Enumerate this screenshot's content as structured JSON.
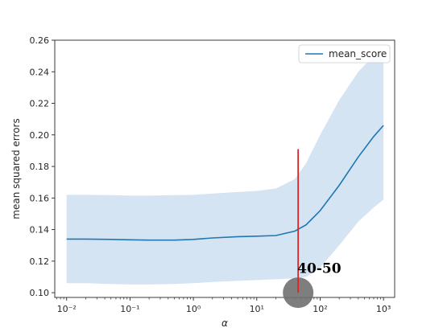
{
  "chart_data": {
    "type": "line",
    "title": "",
    "xlabel": "α",
    "ylabel": "mean squared errors",
    "xscale": "log",
    "xlim": [
      0.0065,
      1500
    ],
    "ylim": [
      0.097,
      0.26
    ],
    "xticks": [
      {
        "value": 0.01,
        "label": "10⁻²"
      },
      {
        "value": 0.1,
        "label": "10⁻¹"
      },
      {
        "value": 1,
        "label": "10⁰"
      },
      {
        "value": 10,
        "label": "10¹"
      },
      {
        "value": 100,
        "label": "10²"
      },
      {
        "value": 1000,
        "label": "10³"
      }
    ],
    "yticks": [
      0.1,
      0.12,
      0.14,
      0.16,
      0.18,
      0.2,
      0.22,
      0.24,
      0.26
    ],
    "ytick_labels": [
      "0.10",
      "0.12",
      "0.14",
      "0.16",
      "0.18",
      "0.20",
      "0.22",
      "0.24",
      "0.26"
    ],
    "legend": {
      "position": "top-right",
      "entries": [
        "mean_score"
      ]
    },
    "grid": false,
    "colors": {
      "line": "#1f77b4",
      "band": "#c6dbef",
      "vline": "#d62728",
      "marker": "#707070"
    },
    "series": [
      {
        "name": "mean_score",
        "x": [
          0.01,
          0.02,
          0.05,
          0.1,
          0.2,
          0.5,
          1,
          2,
          5,
          10,
          20,
          40,
          60,
          100,
          200,
          400,
          700,
          1000
        ],
        "y": [
          0.134,
          0.134,
          0.1338,
          0.1335,
          0.1333,
          0.1333,
          0.1338,
          0.1347,
          0.1355,
          0.1358,
          0.1362,
          0.139,
          0.143,
          0.152,
          0.168,
          0.186,
          0.199,
          0.206
        ]
      }
    ],
    "band": {
      "x": [
        0.01,
        0.02,
        0.05,
        0.1,
        0.2,
        0.5,
        1,
        2,
        5,
        10,
        20,
        40,
        60,
        100,
        200,
        400,
        700,
        1000
      ],
      "lower": [
        0.106,
        0.106,
        0.1055,
        0.1052,
        0.1052,
        0.1055,
        0.106,
        0.1068,
        0.1075,
        0.108,
        0.1085,
        0.109,
        0.11,
        0.116,
        0.13,
        0.145,
        0.154,
        0.159
      ],
      "upper": [
        0.162,
        0.162,
        0.1618,
        0.1615,
        0.1615,
        0.1618,
        0.162,
        0.1628,
        0.1638,
        0.1645,
        0.166,
        0.172,
        0.182,
        0.2,
        0.222,
        0.24,
        0.25,
        0.255
      ]
    },
    "vline": {
      "x": 45,
      "y_top": 0.191,
      "y_bottom": 0.1
    },
    "annotation": {
      "text": "40-50",
      "x": 45,
      "y": 0.115
    },
    "marker": {
      "x": 45,
      "y": 0.1
    }
  }
}
